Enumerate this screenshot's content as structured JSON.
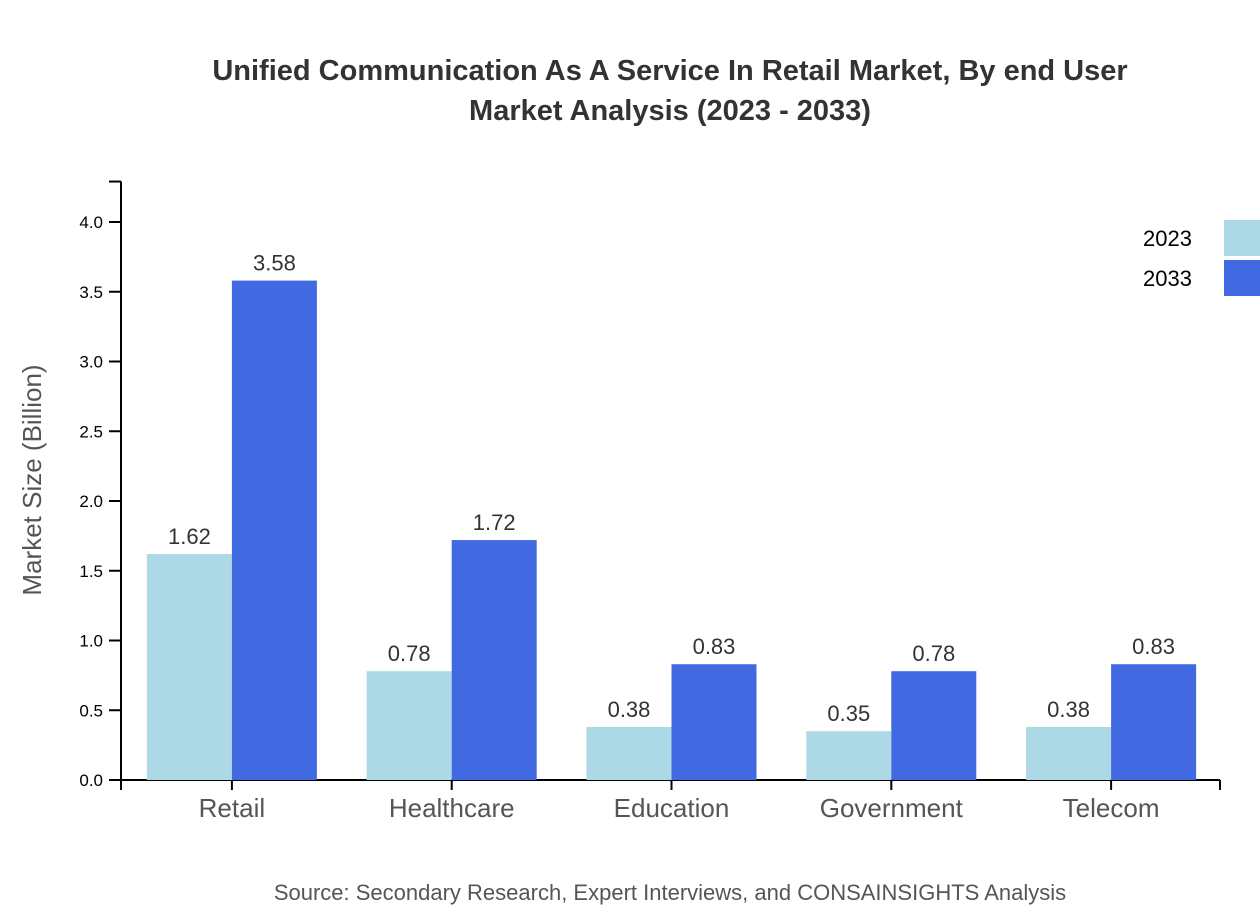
{
  "chart_data": {
    "type": "bar",
    "title": [
      "Unified Communication As A Service In Retail Market, By end User",
      "Market Analysis (2023 - 2033)"
    ],
    "xlabel": "",
    "ylabel": "Market Size (Billion)",
    "ylim": [
      0,
      4.29
    ],
    "yticks": [
      "0.0",
      "0.5",
      "1.0",
      "1.5",
      "2.0",
      "2.5",
      "3.0",
      "3.5",
      "4.0"
    ],
    "categories": [
      "Retail",
      "Healthcare",
      "Education",
      "Government",
      "Telecom"
    ],
    "series": [
      {
        "name": "2023",
        "color": "#add8e6",
        "values": [
          1.62,
          0.78,
          0.38,
          0.35,
          0.38
        ]
      },
      {
        "name": "2033",
        "color": "#4169e1",
        "values": [
          3.58,
          1.72,
          0.83,
          0.78,
          0.83
        ]
      }
    ],
    "grid": false,
    "legend": "top-right",
    "source": "Source: Secondary Research, Expert Interviews, and CONSAINSIGHTS Analysis"
  }
}
